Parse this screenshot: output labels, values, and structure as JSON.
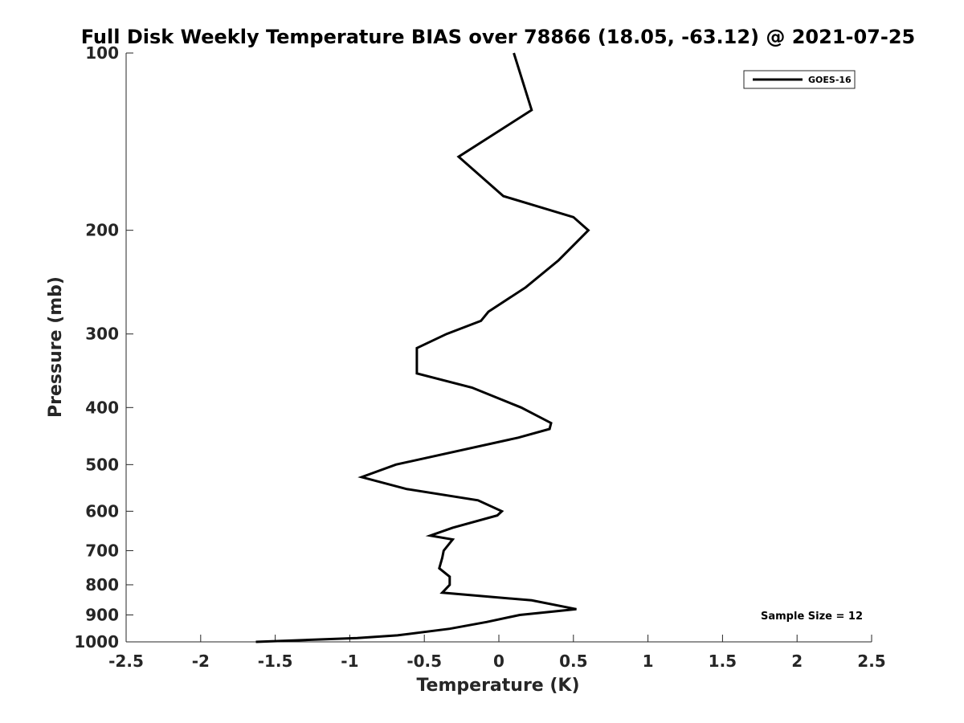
{
  "chart_data": {
    "type": "line",
    "title": "Full Disk Weekly Temperature BIAS over 78866 (18.05, -63.12) @ 2021-07-25",
    "xlabel": "Temperature (K)",
    "ylabel": "Pressure (mb)",
    "xlim": [
      -2.5,
      2.5
    ],
    "ylim": [
      1000,
      100
    ],
    "yscale": "log",
    "y_reversed": true,
    "xticks": [
      -2.5,
      -2,
      -1.5,
      -1,
      -0.5,
      0,
      0.5,
      1,
      1.5,
      2,
      2.5
    ],
    "xtick_labels": [
      "-2.5",
      "-2",
      "-1.5",
      "-1",
      "-0.5",
      "0",
      "0.5",
      "1",
      "1.5",
      "2",
      "2.5"
    ],
    "yticks": [
      100,
      200,
      300,
      400,
      500,
      600,
      700,
      800,
      900,
      1000
    ],
    "ytick_labels": [
      "100",
      "200",
      "300",
      "400",
      "500",
      "600",
      "700",
      "800",
      "900",
      "1000"
    ],
    "grid": false,
    "legend": {
      "placement": "top-right",
      "entries": [
        "GOES-16"
      ]
    },
    "annotation": "Sample Size = 12",
    "series": [
      {
        "name": "GOES-16",
        "color": "#000000",
        "points": [
          {
            "x": 0.1,
            "y": 100
          },
          {
            "x": 0.22,
            "y": 125
          },
          {
            "x": -0.27,
            "y": 150
          },
          {
            "x": 0.03,
            "y": 175
          },
          {
            "x": 0.5,
            "y": 190
          },
          {
            "x": 0.6,
            "y": 200
          },
          {
            "x": 0.4,
            "y": 225
          },
          {
            "x": 0.18,
            "y": 250
          },
          {
            "x": -0.07,
            "y": 275
          },
          {
            "x": -0.12,
            "y": 285
          },
          {
            "x": -0.35,
            "y": 300
          },
          {
            "x": -0.55,
            "y": 317
          },
          {
            "x": -0.55,
            "y": 350
          },
          {
            "x": -0.18,
            "y": 370
          },
          {
            "x": 0.15,
            "y": 400
          },
          {
            "x": 0.35,
            "y": 425
          },
          {
            "x": 0.34,
            "y": 435
          },
          {
            "x": 0.13,
            "y": 450
          },
          {
            "x": -0.69,
            "y": 500
          },
          {
            "x": -0.92,
            "y": 525
          },
          {
            "x": -0.62,
            "y": 550
          },
          {
            "x": -0.14,
            "y": 575
          },
          {
            "x": 0.02,
            "y": 600
          },
          {
            "x": -0.01,
            "y": 610
          },
          {
            "x": -0.31,
            "y": 640
          },
          {
            "x": -0.46,
            "y": 660
          },
          {
            "x": -0.31,
            "y": 670
          },
          {
            "x": -0.37,
            "y": 700
          },
          {
            "x": -0.38,
            "y": 720
          },
          {
            "x": -0.4,
            "y": 750
          },
          {
            "x": -0.33,
            "y": 775
          },
          {
            "x": -0.33,
            "y": 800
          },
          {
            "x": -0.38,
            "y": 825
          },
          {
            "x": 0.22,
            "y": 850
          },
          {
            "x": 0.52,
            "y": 880
          },
          {
            "x": 0.14,
            "y": 900
          },
          {
            "x": -0.08,
            "y": 925
          },
          {
            "x": -0.33,
            "y": 950
          },
          {
            "x": -0.68,
            "y": 975
          },
          {
            "x": -0.95,
            "y": 985
          },
          {
            "x": -1.63,
            "y": 1000
          }
        ]
      }
    ]
  }
}
